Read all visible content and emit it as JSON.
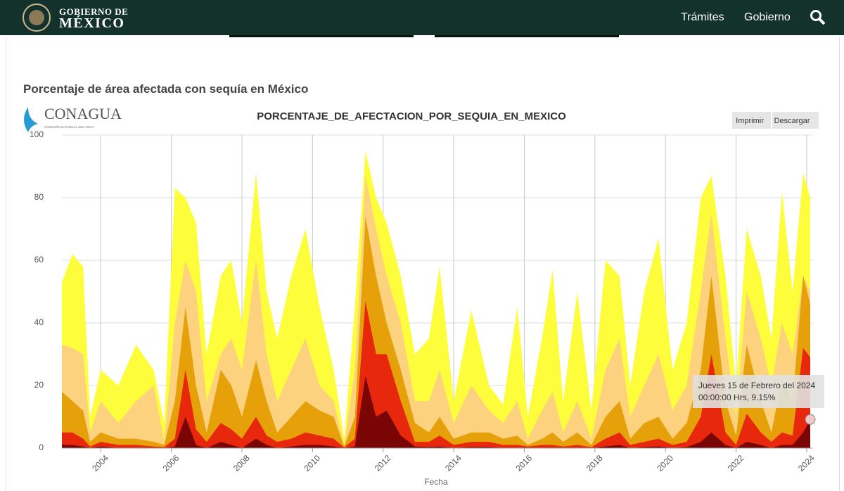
{
  "header": {
    "brand_top": "GOBIERNO DE",
    "brand_main": "MÉXICO",
    "nav": [
      "Trámites",
      "Gobierno"
    ]
  },
  "section_title": "Porcentaje de área afectada con sequía en México",
  "logo": {
    "name": "CONAGUA",
    "subtitle": "COMISIÓN NACIONAL DEL AGUA"
  },
  "buttons": [
    "Imprimir",
    "Descargar"
  ],
  "tooltip": {
    "date": "Jueves 15 de Febrero del 2024",
    "detail": "00:00:00 Hrs, 9.15%"
  },
  "chart_data": {
    "type": "area",
    "title": "PORCENTAJE_DE_AFECTACION_POR_SEQUIA_EN_MEXICO",
    "x_label": "Fecha",
    "x": [
      2002.9,
      2003.2,
      2003.5,
      2003.7,
      2004.0,
      2004.5,
      2005.0,
      2005.5,
      2005.8,
      2006.1,
      2006.4,
      2006.7,
      2007.0,
      2007.4,
      2007.7,
      2008.0,
      2008.4,
      2008.7,
      2009.0,
      2009.4,
      2009.8,
      2010.2,
      2010.6,
      2010.9,
      2011.2,
      2011.5,
      2011.8,
      2012.1,
      2012.5,
      2012.9,
      2013.3,
      2013.6,
      2014.0,
      2014.5,
      2015.0,
      2015.4,
      2015.8,
      2016.1,
      2016.5,
      2016.8,
      2017.1,
      2017.5,
      2017.9,
      2018.3,
      2018.7,
      2019.0,
      2019.4,
      2019.8,
      2020.2,
      2020.6,
      2021.0,
      2021.3,
      2021.7,
      2022.0,
      2022.3,
      2022.7,
      2023.0,
      2023.3,
      2023.6,
      2023.9,
      2024.1
    ],
    "series": [
      {
        "color": "#fdfd3c",
        "values": [
          53,
          62,
          58,
          10,
          25,
          20,
          33,
          25,
          8,
          83,
          80,
          72,
          30,
          55,
          60,
          40,
          88,
          50,
          35,
          55,
          70,
          45,
          25,
          3,
          45,
          95,
          80,
          72,
          55,
          30,
          35,
          58,
          15,
          44,
          20,
          14,
          45,
          10,
          35,
          57,
          15,
          50,
          12,
          60,
          55,
          20,
          50,
          67,
          25,
          40,
          80,
          87,
          55,
          20,
          70,
          55,
          35,
          82,
          50,
          88,
          80
        ]
      },
      {
        "color": "#fcd27e",
        "values": [
          33,
          32,
          30,
          5,
          15,
          8,
          15,
          20,
          2,
          40,
          60,
          50,
          15,
          30,
          35,
          25,
          60,
          30,
          15,
          25,
          35,
          20,
          15,
          1,
          25,
          87,
          70,
          55,
          40,
          15,
          15,
          25,
          8,
          20,
          12,
          8,
          15,
          3,
          12,
          18,
          5,
          15,
          3,
          25,
          35,
          10,
          20,
          30,
          12,
          20,
          50,
          75,
          35,
          10,
          50,
          35,
          20,
          40,
          30,
          55,
          50
        ]
      },
      {
        "color": "#e6a10a",
        "values": [
          18,
          15,
          12,
          2,
          5,
          3,
          3,
          2,
          1,
          15,
          45,
          20,
          5,
          25,
          20,
          10,
          28,
          15,
          5,
          10,
          15,
          12,
          10,
          0.5,
          10,
          74,
          55,
          40,
          25,
          8,
          5,
          10,
          3,
          5,
          5,
          3,
          4,
          1,
          3,
          5,
          2,
          5,
          1,
          10,
          15,
          3,
          8,
          10,
          3,
          8,
          25,
          55,
          15,
          4,
          33,
          15,
          5,
          22,
          15,
          55,
          46
        ]
      },
      {
        "color": "#e8280c",
        "values": [
          5,
          5,
          3,
          0.5,
          2,
          1,
          1,
          0.5,
          0.3,
          3,
          25,
          6,
          2,
          8,
          6,
          3,
          10,
          4,
          2,
          3,
          5,
          4,
          3,
          0.2,
          3,
          47,
          30,
          30,
          15,
          2,
          2,
          4,
          1,
          2,
          2,
          1,
          1,
          0.5,
          1,
          1,
          0.5,
          1,
          0.3,
          3,
          5,
          1,
          2,
          3,
          1,
          2,
          10,
          30,
          5,
          1,
          11,
          5,
          2,
          5,
          4,
          32,
          29
        ]
      },
      {
        "color": "#7a0505",
        "values": [
          1,
          1,
          0.5,
          0,
          0.5,
          0,
          0,
          0,
          0,
          0.5,
          10,
          1,
          0,
          2,
          1,
          0,
          3,
          1,
          0,
          0.5,
          1,
          1,
          0.5,
          0,
          0.5,
          23,
          10,
          12,
          4,
          0.5,
          0.3,
          0.5,
          0,
          0.3,
          0.3,
          0,
          0,
          0,
          0,
          0,
          0,
          0,
          0,
          0.5,
          1,
          0,
          0.3,
          0.5,
          0,
          0.3,
          2,
          5,
          1,
          0,
          2,
          1,
          0,
          1,
          1,
          5,
          9.15
        ]
      }
    ],
    "xlim": [
      2002.9,
      2024.16
    ],
    "xticks": [
      2004,
      2006,
      2008,
      2010,
      2012,
      2014,
      2016,
      2018,
      2020,
      2022,
      2024
    ],
    "ylim": [
      0,
      100
    ],
    "yticks": [
      0,
      20,
      40,
      60,
      80,
      100
    ],
    "grid": true
  }
}
